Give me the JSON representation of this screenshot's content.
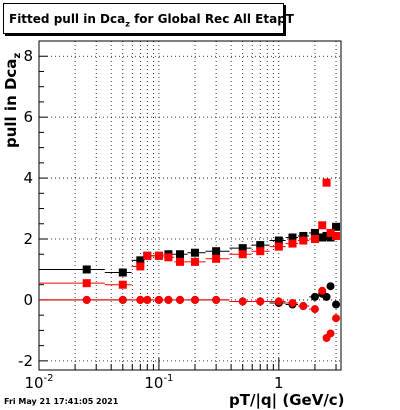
{
  "title": {
    "prefix": "Fitted pull in Dca",
    "sub": "z",
    "suffix": " for Global Rec All EtapT"
  },
  "timestamp": "Fri May 21 17:41:05 2021",
  "ylabel": {
    "prefix": "pull in Dca",
    "sub": "z"
  },
  "xlabel": "pT/|q| (GeV/c)",
  "chart_data": {
    "type": "scatter",
    "xscale": "log",
    "xlim": [
      0.01,
      3.3
    ],
    "ylim": [
      -2.3,
      8.5
    ],
    "grid": true,
    "yticks": [
      -2,
      0,
      2,
      4,
      6,
      8
    ],
    "xtick_labels": [
      {
        "value": 0.01,
        "base": "10",
        "exp": "-2"
      },
      {
        "value": 0.1,
        "base": "10",
        "exp": "-1"
      },
      {
        "value": 1,
        "base": "1",
        "exp": ""
      }
    ],
    "series": [
      {
        "color": "#000000",
        "marker": "square",
        "x": [
          0.025,
          0.05,
          0.07,
          0.08,
          0.1,
          0.12,
          0.15,
          0.2,
          0.3,
          0.5,
          0.7,
          1.0,
          1.3,
          1.6,
          2.0,
          2.3,
          2.5,
          2.7,
          3.0
        ],
        "y": [
          1.0,
          0.9,
          1.3,
          1.45,
          1.45,
          1.5,
          1.5,
          1.55,
          1.6,
          1.7,
          1.8,
          1.95,
          2.05,
          2.1,
          2.2,
          2.05,
          2.1,
          2.05,
          2.4
        ]
      },
      {
        "color": "#ff0000",
        "marker": "square",
        "x": [
          0.025,
          0.05,
          0.07,
          0.08,
          0.1,
          0.12,
          0.15,
          0.2,
          0.3,
          0.5,
          0.7,
          1.0,
          1.3,
          1.6,
          2.0,
          2.3,
          2.5,
          2.7,
          3.0
        ],
        "y": [
          0.55,
          0.5,
          1.1,
          1.45,
          1.45,
          1.4,
          1.25,
          1.25,
          1.35,
          1.5,
          1.6,
          1.75,
          1.85,
          1.95,
          2.0,
          2.45,
          3.85,
          2.2,
          2.1
        ]
      },
      {
        "color": "#000000",
        "marker": "circle",
        "x": [
          0.025,
          0.05,
          0.07,
          0.08,
          0.1,
          0.12,
          0.15,
          0.2,
          0.3,
          0.5,
          0.7,
          1.0,
          1.3,
          1.6,
          2.0,
          2.3,
          2.5,
          2.7,
          3.0
        ],
        "y": [
          0.0,
          0.0,
          0.0,
          0.0,
          0.0,
          0.0,
          0.0,
          0.0,
          0.0,
          -0.05,
          -0.05,
          -0.1,
          -0.15,
          -0.2,
          0.1,
          0.2,
          0.1,
          0.45,
          -0.15
        ]
      },
      {
        "color": "#ff0000",
        "marker": "circle",
        "x": [
          0.025,
          0.05,
          0.07,
          0.08,
          0.1,
          0.12,
          0.15,
          0.2,
          0.3,
          0.5,
          0.7,
          1.0,
          1.3,
          1.6,
          2.0,
          2.3,
          2.5,
          2.7,
          3.0
        ],
        "y": [
          0.0,
          0.0,
          0.0,
          0.0,
          0.0,
          0.0,
          0.0,
          0.0,
          0.0,
          -0.05,
          -0.05,
          -0.05,
          -0.1,
          -0.2,
          -0.3,
          0.3,
          -1.25,
          -1.1,
          -0.6
        ]
      }
    ]
  }
}
